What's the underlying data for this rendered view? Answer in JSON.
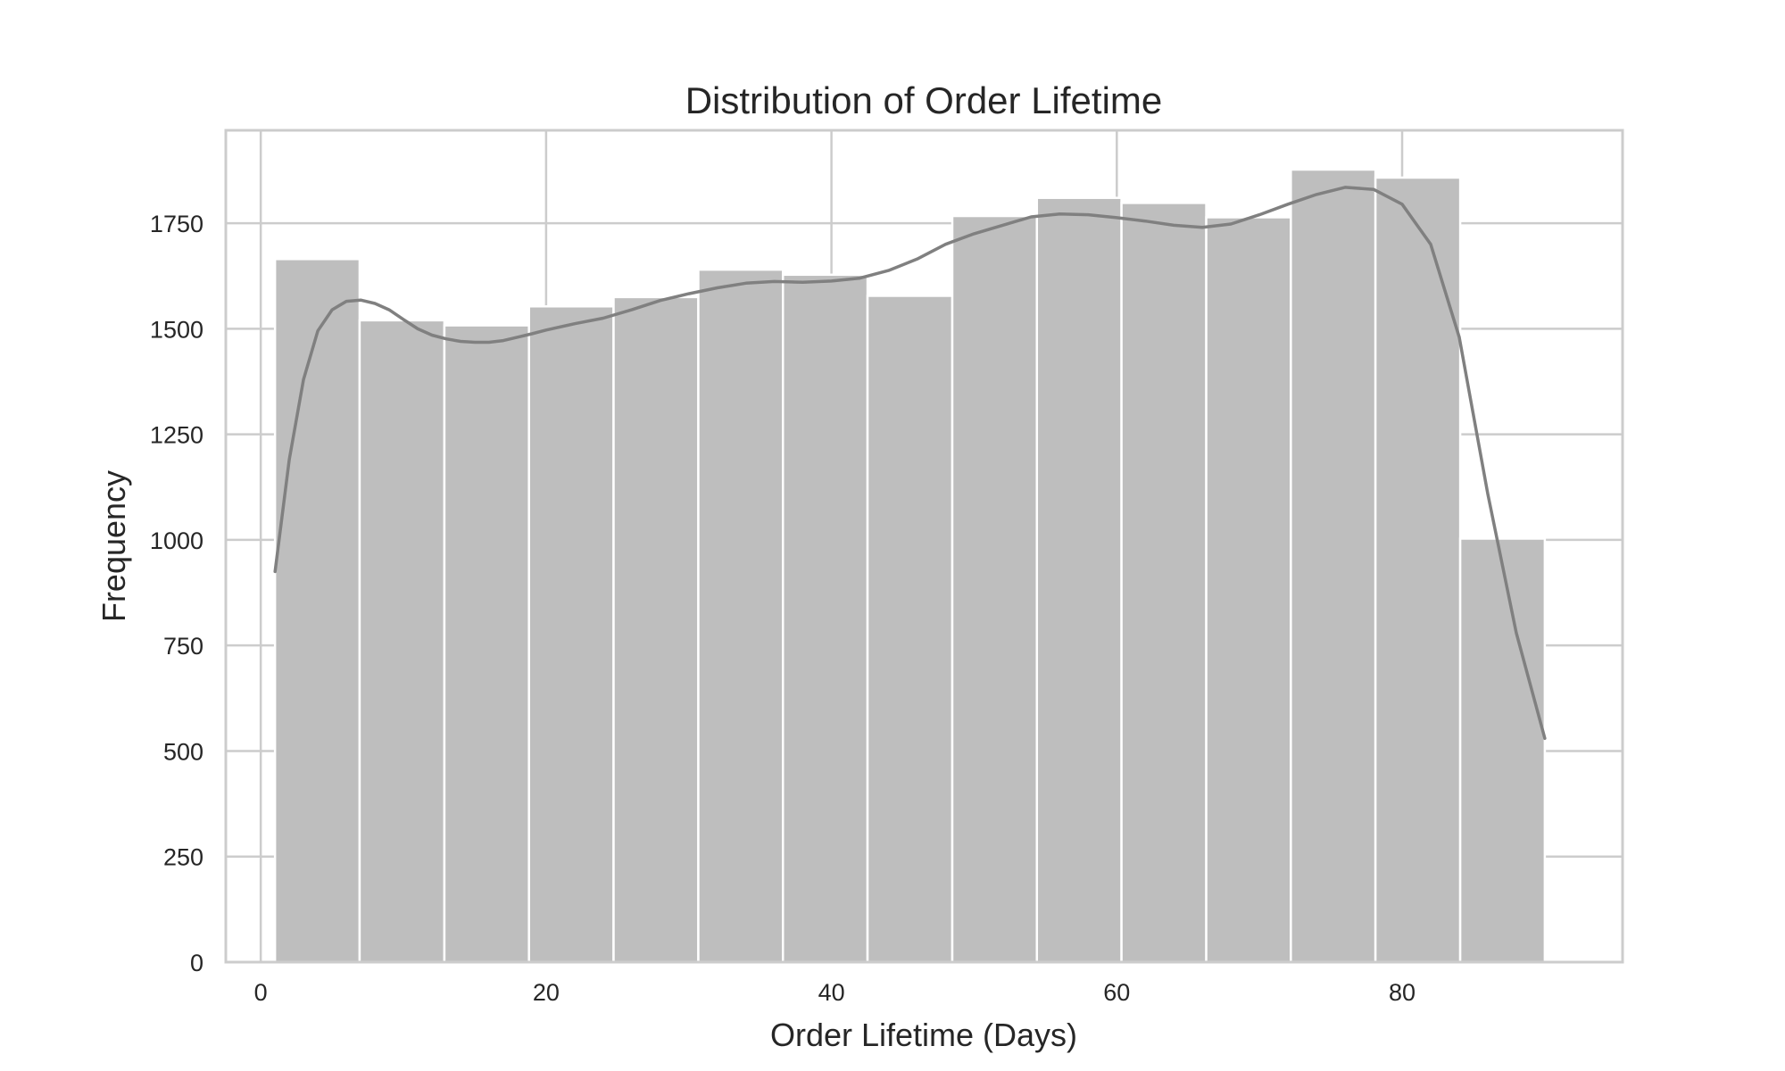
{
  "chart_data": {
    "type": "bar",
    "title": "Distribution of Order Lifetime",
    "xlabel": "Order Lifetime (Days)",
    "ylabel": "Frequency",
    "xlim": [
      -2.45,
      95.45
    ],
    "ylim": [
      0,
      1970
    ],
    "xticks": [
      0,
      20,
      40,
      60,
      80
    ],
    "yticks": [
      0,
      250,
      500,
      750,
      1000,
      1250,
      1500,
      1750
    ],
    "grid": true,
    "bar_color": "#bebebe",
    "line_color": "#808080",
    "bins": [
      {
        "start": 1.0,
        "end": 6.93,
        "count": 1665
      },
      {
        "start": 6.93,
        "end": 12.87,
        "count": 1520
      },
      {
        "start": 12.87,
        "end": 18.8,
        "count": 1508
      },
      {
        "start": 18.8,
        "end": 24.73,
        "count": 1553
      },
      {
        "start": 24.73,
        "end": 30.67,
        "count": 1575
      },
      {
        "start": 30.67,
        "end": 36.6,
        "count": 1640
      },
      {
        "start": 36.6,
        "end": 42.53,
        "count": 1628
      },
      {
        "start": 42.53,
        "end": 48.47,
        "count": 1578
      },
      {
        "start": 48.47,
        "end": 54.4,
        "count": 1767
      },
      {
        "start": 54.4,
        "end": 60.33,
        "count": 1810
      },
      {
        "start": 60.33,
        "end": 66.27,
        "count": 1798
      },
      {
        "start": 66.27,
        "end": 72.2,
        "count": 1764
      },
      {
        "start": 72.2,
        "end": 78.13,
        "count": 1877
      },
      {
        "start": 78.13,
        "end": 84.07,
        "count": 1858
      },
      {
        "start": 84.07,
        "end": 90.0,
        "count": 1003
      }
    ],
    "kde": {
      "x": [
        1,
        2,
        3,
        4,
        5,
        6,
        7,
        8,
        9,
        10,
        11,
        12,
        13,
        14,
        15,
        16,
        17,
        18,
        19,
        20,
        22,
        24,
        26,
        28,
        30,
        32,
        34,
        36,
        38,
        40,
        42,
        44,
        46,
        48,
        50,
        52,
        54,
        56,
        58,
        60,
        62,
        64,
        66,
        68,
        70,
        72,
        74,
        76,
        78,
        80,
        82,
        84,
        86,
        88,
        90
      ],
      "y": [
        925,
        1190,
        1380,
        1495,
        1545,
        1565,
        1568,
        1560,
        1545,
        1522,
        1500,
        1485,
        1476,
        1470,
        1468,
        1468,
        1472,
        1480,
        1488,
        1497,
        1512,
        1525,
        1545,
        1567,
        1583,
        1597,
        1608,
        1612,
        1610,
        1613,
        1620,
        1638,
        1665,
        1700,
        1725,
        1745,
        1765,
        1772,
        1770,
        1763,
        1755,
        1745,
        1740,
        1748,
        1770,
        1795,
        1818,
        1835,
        1830,
        1795,
        1700,
        1480,
        1110,
        780,
        530
      ]
    }
  }
}
